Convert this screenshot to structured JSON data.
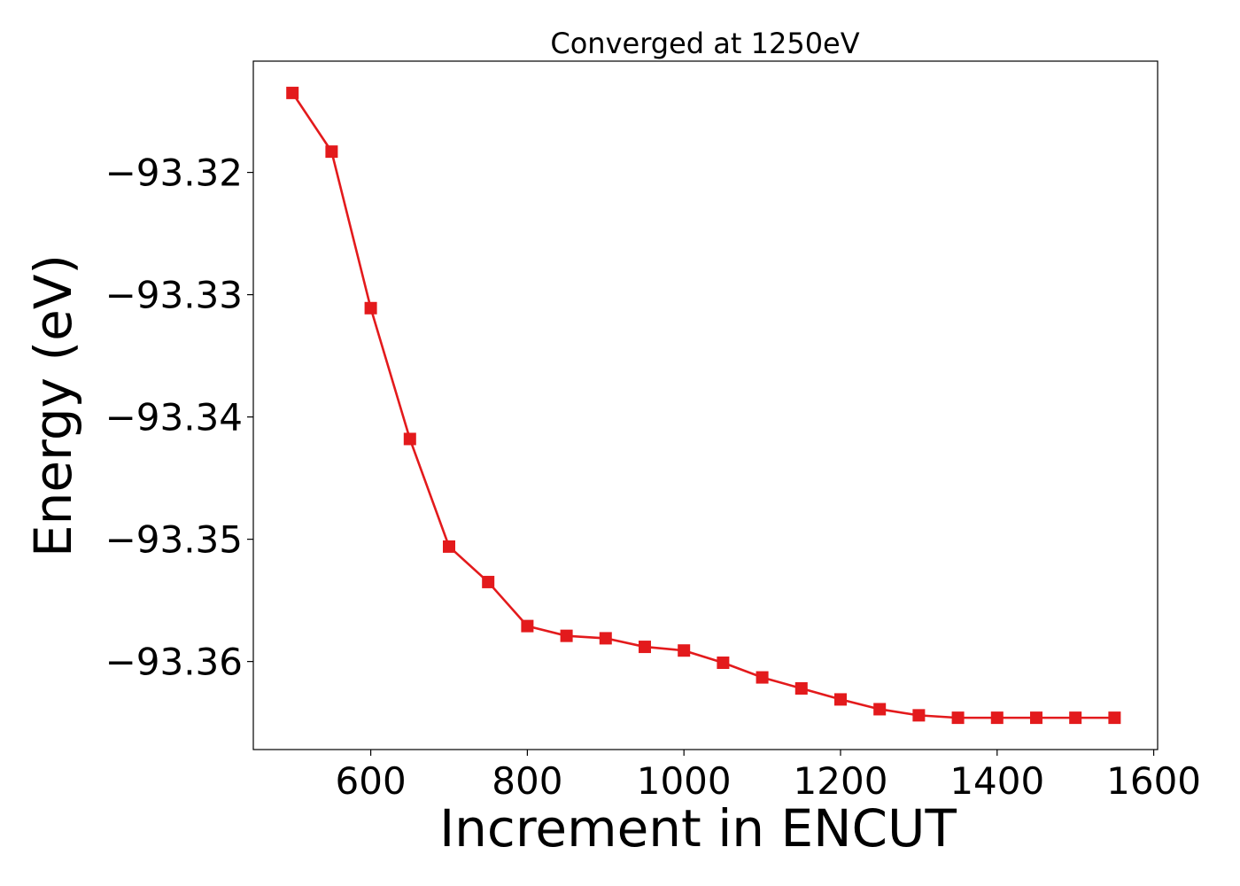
{
  "chart_data": {
    "type": "line",
    "title": "Converged at 1250eV",
    "xlabel": "Increment in ENCUT",
    "ylabel": "Energy (eV)",
    "xlim": [
      450,
      1605
    ],
    "ylim": [
      -93.3672,
      -93.3109
    ],
    "xticks": [
      600,
      800,
      1000,
      1200,
      1400,
      1600
    ],
    "xtick_labels": [
      "600",
      "800",
      "1000",
      "1200",
      "1400",
      "1600"
    ],
    "yticks": [
      -93.32,
      -93.33,
      -93.34,
      -93.35,
      -93.36
    ],
    "ytick_labels": [
      "−93.32",
      "−93.33",
      "−93.34",
      "−93.35",
      "−93.36"
    ],
    "grid": false,
    "series": [
      {
        "color": "#e31a1c",
        "marker": "square",
        "x": [
          500,
          550,
          600,
          650,
          700,
          750,
          800,
          850,
          900,
          950,
          1000,
          1050,
          1100,
          1150,
          1200,
          1250,
          1300,
          1350,
          1400,
          1450,
          1500,
          1550
        ],
        "y": [
          -93.3135,
          -93.3183,
          -93.3311,
          -93.3418,
          -93.3506,
          -93.3535,
          -93.3571,
          -93.3579,
          -93.3581,
          -93.3588,
          -93.3591,
          -93.3601,
          -93.3613,
          -93.3622,
          -93.3631,
          -93.3639,
          -93.3644,
          -93.3646,
          -93.3646,
          -93.3646,
          -93.3646,
          -93.3646
        ]
      }
    ]
  }
}
